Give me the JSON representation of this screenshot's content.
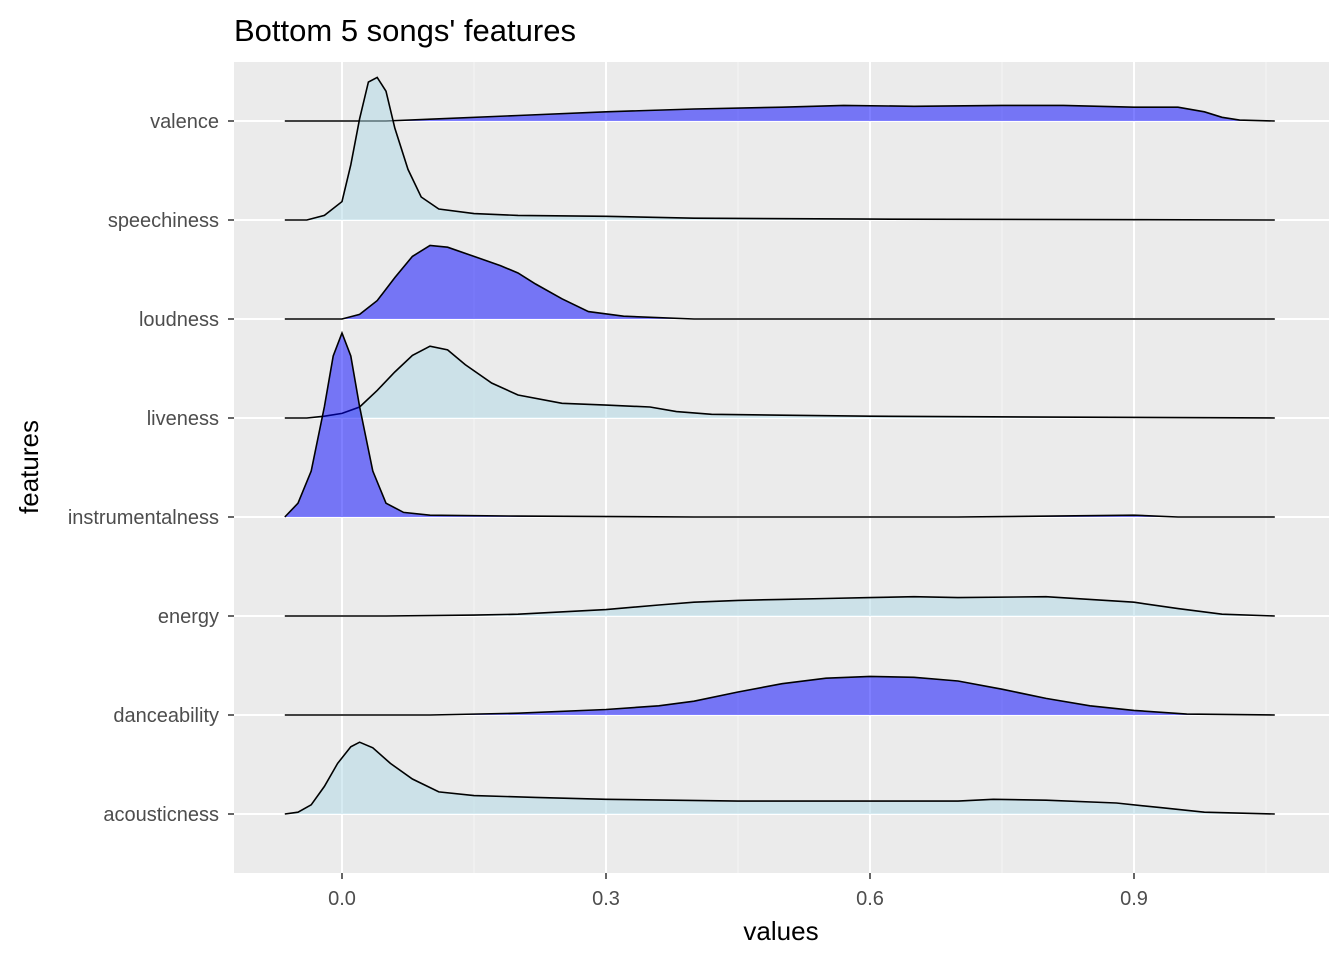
{
  "chart_data": {
    "type": "ridgeline",
    "title": "Bottom 5 songs' features",
    "xlabel": "values",
    "ylabel": "features",
    "xlim": [
      -0.08,
      1.06
    ],
    "x_ticks": [
      0.0,
      0.3,
      0.6,
      0.9
    ],
    "x_tick_labels": [
      "0.0",
      "0.3",
      "0.6",
      "0.9"
    ],
    "grid": true,
    "legend": "none",
    "categories": [
      "acousticness",
      "danceability",
      "energy",
      "instrumentalness",
      "liveness",
      "loudness",
      "speechiness",
      "valence"
    ],
    "colors": {
      "dark": "#0000ff",
      "light": "#add8e6",
      "panel": "#ebebeb",
      "grid_major": "#ffffff",
      "outline": "#000000"
    },
    "series": [
      {
        "name": "acousticness",
        "fill": "light",
        "points": [
          [
            -0.065,
            0
          ],
          [
            -0.05,
            0.02
          ],
          [
            -0.035,
            0.1
          ],
          [
            -0.02,
            0.3
          ],
          [
            -0.005,
            0.55
          ],
          [
            0.01,
            0.73
          ],
          [
            0.02,
            0.78
          ],
          [
            0.035,
            0.72
          ],
          [
            0.055,
            0.55
          ],
          [
            0.08,
            0.38
          ],
          [
            0.11,
            0.24
          ],
          [
            0.15,
            0.2
          ],
          [
            0.22,
            0.18
          ],
          [
            0.3,
            0.16
          ],
          [
            0.45,
            0.14
          ],
          [
            0.6,
            0.14
          ],
          [
            0.7,
            0.14
          ],
          [
            0.74,
            0.16
          ],
          [
            0.8,
            0.15
          ],
          [
            0.88,
            0.12
          ],
          [
            0.93,
            0.07
          ],
          [
            0.98,
            0.02
          ],
          [
            1.06,
            0
          ]
        ]
      },
      {
        "name": "danceability",
        "fill": "dark",
        "points": [
          [
            -0.065,
            0
          ],
          [
            0.1,
            0.0
          ],
          [
            0.2,
            0.02
          ],
          [
            0.3,
            0.06
          ],
          [
            0.36,
            0.1
          ],
          [
            0.4,
            0.15
          ],
          [
            0.45,
            0.25
          ],
          [
            0.5,
            0.34
          ],
          [
            0.55,
            0.4
          ],
          [
            0.6,
            0.42
          ],
          [
            0.65,
            0.41
          ],
          [
            0.7,
            0.37
          ],
          [
            0.75,
            0.28
          ],
          [
            0.8,
            0.18
          ],
          [
            0.85,
            0.1
          ],
          [
            0.9,
            0.05
          ],
          [
            0.96,
            0.01
          ],
          [
            1.06,
            0
          ]
        ]
      },
      {
        "name": "energy",
        "fill": "light",
        "points": [
          [
            -0.065,
            0
          ],
          [
            0.05,
            0.0
          ],
          [
            0.15,
            0.01
          ],
          [
            0.2,
            0.02
          ],
          [
            0.3,
            0.07
          ],
          [
            0.36,
            0.12
          ],
          [
            0.4,
            0.15
          ],
          [
            0.45,
            0.17
          ],
          [
            0.5,
            0.18
          ],
          [
            0.55,
            0.19
          ],
          [
            0.6,
            0.2
          ],
          [
            0.65,
            0.21
          ],
          [
            0.7,
            0.2
          ],
          [
            0.8,
            0.21
          ],
          [
            0.85,
            0.18
          ],
          [
            0.9,
            0.15
          ],
          [
            0.95,
            0.08
          ],
          [
            1.0,
            0.02
          ],
          [
            1.06,
            0
          ]
        ]
      },
      {
        "name": "instrumentalness",
        "fill": "dark",
        "points": [
          [
            -0.065,
            0
          ],
          [
            -0.05,
            0.15
          ],
          [
            -0.035,
            0.5
          ],
          [
            -0.02,
            1.2
          ],
          [
            -0.01,
            1.75
          ],
          [
            0.0,
            2.0
          ],
          [
            0.01,
            1.75
          ],
          [
            0.02,
            1.2
          ],
          [
            0.035,
            0.5
          ],
          [
            0.05,
            0.15
          ],
          [
            0.07,
            0.05
          ],
          [
            0.1,
            0.02
          ],
          [
            0.2,
            0.01
          ],
          [
            0.4,
            0.0
          ],
          [
            0.7,
            0.0
          ],
          [
            0.9,
            0.02
          ],
          [
            0.95,
            0.0
          ],
          [
            1.06,
            0
          ]
        ]
      },
      {
        "name": "liveness",
        "fill": "light",
        "points": [
          [
            -0.065,
            0
          ],
          [
            -0.04,
            0.0
          ],
          [
            -0.02,
            0.02
          ],
          [
            0.0,
            0.05
          ],
          [
            0.02,
            0.12
          ],
          [
            0.04,
            0.3
          ],
          [
            0.06,
            0.5
          ],
          [
            0.08,
            0.68
          ],
          [
            0.1,
            0.78
          ],
          [
            0.12,
            0.74
          ],
          [
            0.14,
            0.58
          ],
          [
            0.17,
            0.38
          ],
          [
            0.2,
            0.25
          ],
          [
            0.25,
            0.16
          ],
          [
            0.3,
            0.14
          ],
          [
            0.35,
            0.12
          ],
          [
            0.38,
            0.07
          ],
          [
            0.42,
            0.04
          ],
          [
            0.5,
            0.03
          ],
          [
            0.6,
            0.02
          ],
          [
            0.8,
            0.01
          ],
          [
            1.06,
            0
          ]
        ]
      },
      {
        "name": "loudness",
        "fill": "dark",
        "points": [
          [
            -0.065,
            0
          ],
          [
            0.0,
            0.0
          ],
          [
            0.02,
            0.05
          ],
          [
            0.04,
            0.2
          ],
          [
            0.06,
            0.45
          ],
          [
            0.08,
            0.68
          ],
          [
            0.1,
            0.8
          ],
          [
            0.12,
            0.78
          ],
          [
            0.15,
            0.68
          ],
          [
            0.18,
            0.58
          ],
          [
            0.2,
            0.5
          ],
          [
            0.22,
            0.38
          ],
          [
            0.25,
            0.22
          ],
          [
            0.28,
            0.08
          ],
          [
            0.32,
            0.03
          ],
          [
            0.4,
            0.0
          ],
          [
            1.06,
            0
          ]
        ]
      },
      {
        "name": "speechiness",
        "fill": "light",
        "points": [
          [
            -0.065,
            0
          ],
          [
            -0.04,
            0.0
          ],
          [
            -0.02,
            0.05
          ],
          [
            0.0,
            0.2
          ],
          [
            0.01,
            0.6
          ],
          [
            0.02,
            1.1
          ],
          [
            0.03,
            1.5
          ],
          [
            0.04,
            1.55
          ],
          [
            0.05,
            1.4
          ],
          [
            0.06,
            1.0
          ],
          [
            0.075,
            0.55
          ],
          [
            0.09,
            0.25
          ],
          [
            0.11,
            0.12
          ],
          [
            0.15,
            0.07
          ],
          [
            0.2,
            0.05
          ],
          [
            0.3,
            0.04
          ],
          [
            0.4,
            0.02
          ],
          [
            0.6,
            0.01
          ],
          [
            1.06,
            0
          ]
        ]
      },
      {
        "name": "valence",
        "fill": "dark",
        "points": [
          [
            -0.065,
            0
          ],
          [
            0.05,
            0.0
          ],
          [
            0.1,
            0.02
          ],
          [
            0.2,
            0.06
          ],
          [
            0.3,
            0.1
          ],
          [
            0.4,
            0.13
          ],
          [
            0.5,
            0.15
          ],
          [
            0.57,
            0.17
          ],
          [
            0.65,
            0.16
          ],
          [
            0.75,
            0.17
          ],
          [
            0.82,
            0.17
          ],
          [
            0.9,
            0.15
          ],
          [
            0.95,
            0.15
          ],
          [
            0.98,
            0.1
          ],
          [
            1.0,
            0.04
          ],
          [
            1.02,
            0.01
          ],
          [
            1.06,
            0
          ]
        ]
      }
    ]
  }
}
